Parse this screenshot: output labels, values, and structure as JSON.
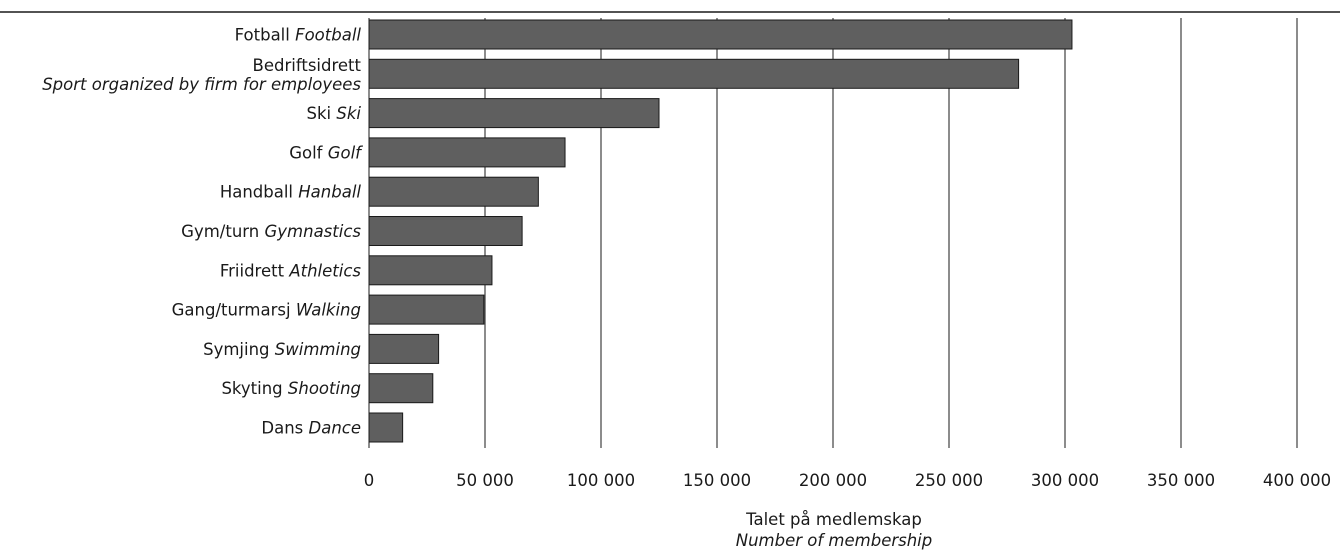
{
  "chart_data": {
    "type": "bar",
    "orientation": "horizontal",
    "categories": [
      {
        "no": "Fotball",
        "en": "Football"
      },
      {
        "no": "Bedriftsidrett",
        "en": "Sport organized by firm for employees"
      },
      {
        "no": "Ski",
        "en": "Ski"
      },
      {
        "no": "Golf",
        "en": "Golf"
      },
      {
        "no": "Handball",
        "en": "Hanball"
      },
      {
        "no": "Gym/turn",
        "en": "Gymnastics"
      },
      {
        "no": "Friidrett",
        "en": "Athletics"
      },
      {
        "no": "Gang/turmarsj",
        "en": "Walking"
      },
      {
        "no": "Symjing",
        "en": "Swimming"
      },
      {
        "no": "Skyting",
        "en": "Shooting"
      },
      {
        "no": "Dans",
        "en": "Dance"
      }
    ],
    "values": [
      303000,
      280000,
      125000,
      84500,
      73000,
      66000,
      53000,
      49500,
      30000,
      27500,
      14500
    ],
    "xlim": [
      0,
      400000
    ],
    "ticks": [
      0,
      50000,
      100000,
      150000,
      200000,
      250000,
      300000,
      350000,
      400000
    ],
    "tick_labels": [
      "0",
      "50 000",
      "100 000",
      "150 000",
      "200 000",
      "250 000",
      "300 000",
      "350 000",
      "400 000"
    ],
    "xlabel": "Talet på medlemskap",
    "xlabel_en": "Number of membership",
    "grid": true,
    "colors": {
      "bar": "#5f5f5f",
      "bar_edge": "#1a1a1a",
      "grid": "#1a1a1a"
    }
  }
}
